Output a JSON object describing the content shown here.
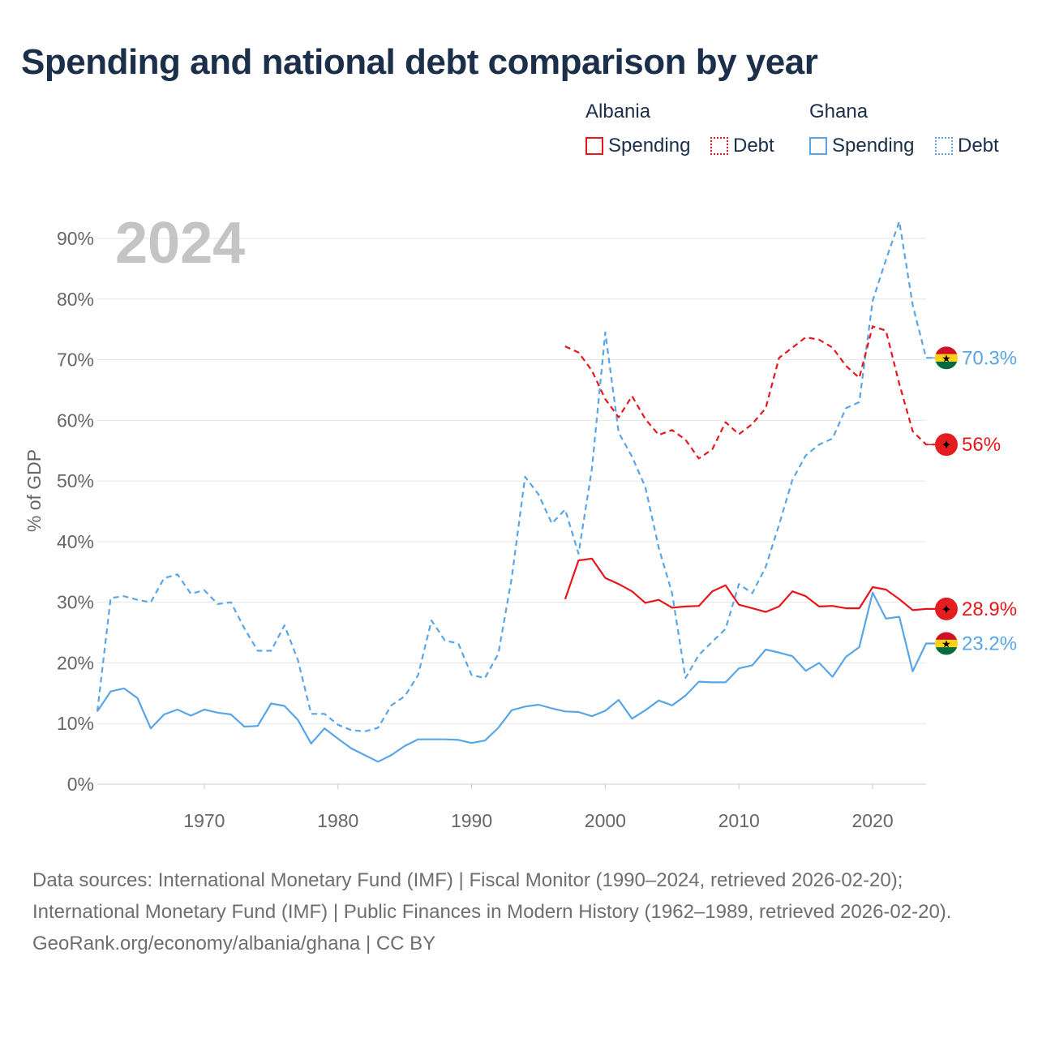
{
  "title": "Spending and national debt comparison by year",
  "legend": {
    "albania": {
      "name": "Albania",
      "spending": "Spending",
      "debt": "Debt",
      "color": "#e8161b"
    },
    "ghana": {
      "name": "Ghana",
      "spending": "Spending",
      "debt": "Debt",
      "color": "#5aa5e6"
    }
  },
  "footer": {
    "sources": "Data sources: International Monetary Fund (IMF) | Fiscal Monitor (1990–2024, retrieved 2026-02-20); International Monetary Fund (IMF) | Public Finances in Modern History (1962–1989, retrieved 2026-02-20).",
    "credit": "GeoRank.org/economy/albania/ghana | CC BY"
  },
  "chart_data": {
    "type": "line",
    "year_label": "2024",
    "ylabel": "% of GDP",
    "xlim": [
      1962,
      2024
    ],
    "ylim": [
      0,
      90
    ],
    "x_ticks": [
      1970,
      1980,
      1990,
      2000,
      2010,
      2020
    ],
    "y_ticks": [
      0,
      10,
      20,
      30,
      40,
      50,
      60,
      70,
      80,
      90
    ],
    "y_tick_labels": [
      "0%",
      "10%",
      "20%",
      "30%",
      "40%",
      "50%",
      "60%",
      "70%",
      "80%",
      "90%"
    ],
    "grid": true,
    "series": [
      {
        "name": "Ghana Debt",
        "country": "Ghana",
        "kind": "debt",
        "color": "#5aa5e6",
        "dash": "7,5",
        "start": 1962,
        "values": [
          12,
          30.7,
          31,
          30.4,
          30,
          34,
          34.6,
          31.4,
          32,
          29.7,
          30,
          25.7,
          22,
          22,
          26.2,
          20.5,
          11.6,
          11.6,
          9.8,
          8.9,
          8.7,
          9.3,
          13,
          14.5,
          18,
          27,
          23.7,
          23.2,
          18,
          17.5,
          21.5,
          34,
          50.7,
          47.8,
          43,
          45.3,
          38,
          52,
          74.5,
          58,
          54,
          49,
          39,
          31.5,
          17.5,
          21.3,
          23.5,
          25.6,
          33,
          31.5,
          35.8,
          42.8,
          50.2,
          54.2,
          56,
          57,
          62,
          63,
          79.7,
          86.5,
          92.8,
          79,
          70.3,
          70.3
        ],
        "end_label": "70.3%"
      },
      {
        "name": "Ghana Spending",
        "country": "Ghana",
        "kind": "spending",
        "color": "#5aa5e6",
        "dash": "",
        "start": 1962,
        "values": [
          12,
          15.3,
          15.8,
          14.2,
          9.2,
          11.5,
          12.3,
          11.3,
          12.3,
          11.8,
          11.5,
          9.5,
          9.6,
          13.3,
          12.9,
          10.6,
          6.7,
          9.2,
          7.5,
          5.9,
          4.8,
          3.7,
          4.8,
          6.3,
          7.4,
          7.4,
          7.4,
          7.3,
          6.8,
          7.2,
          9.3,
          12.2,
          12.8,
          13.1,
          12.5,
          12,
          11.9,
          11.2,
          12.1,
          13.9,
          10.8,
          12.2,
          13.8,
          13,
          14.6,
          16.9,
          16.8,
          16.8,
          19.1,
          19.6,
          22.2,
          21.7,
          21.1,
          18.7,
          20,
          17.7,
          21,
          22.6,
          31.6,
          27.3,
          27.6,
          18.6,
          23.2,
          23.2
        ],
        "end_label": "23.2%"
      },
      {
        "name": "Albania Debt",
        "country": "Albania",
        "kind": "debt",
        "color": "#e8161b",
        "dash": "7,5",
        "start": 1997,
        "values": [
          72.2,
          71.2,
          68.2,
          63.5,
          60.5,
          64,
          60.2,
          57.6,
          58.4,
          56.8,
          53.7,
          55.2,
          59.7,
          57.7,
          59.4,
          62,
          70.3,
          72,
          73.7,
          73.3,
          72,
          69,
          67,
          75.5,
          74.8,
          66,
          58.2,
          56,
          56
        ],
        "end_label": "56%"
      },
      {
        "name": "Albania Spending",
        "country": "Albania",
        "kind": "spending",
        "color": "#e8161b",
        "dash": "",
        "start": 1997,
        "values": [
          30.5,
          36.9,
          37.2,
          34,
          33,
          31.8,
          29.9,
          30.4,
          29.1,
          29.3,
          29.4,
          31.8,
          32.8,
          29.6,
          29,
          28.4,
          29.3,
          31.8,
          31,
          29.3,
          29.4,
          29,
          29,
          32.5,
          32.1,
          30.5,
          28.7,
          28.9,
          28.9
        ],
        "end_label": "28.9%"
      }
    ]
  }
}
